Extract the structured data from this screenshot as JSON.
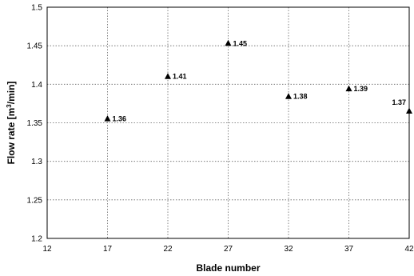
{
  "chart_data": {
    "type": "scatter",
    "title": "",
    "xlabel": "Blade number",
    "ylabel_pre": "Flow rate [m",
    "ylabel_sup": "3",
    "ylabel_post": "/min]",
    "xlim": [
      12,
      42
    ],
    "ylim": [
      1.2,
      1.5
    ],
    "xticks": [
      "12",
      "17",
      "22",
      "27",
      "32",
      "37",
      "42"
    ],
    "yticks": [
      "1.2",
      "1.25",
      "1.3",
      "1.35",
      "1.4",
      "1.45",
      "1.5"
    ],
    "grid": true,
    "marker": "triangle",
    "color": "#000000",
    "points": [
      {
        "x": 17,
        "y": 1.355,
        "label": "1.36"
      },
      {
        "x": 22,
        "y": 1.41,
        "label": "1.41"
      },
      {
        "x": 27,
        "y": 1.453,
        "label": "1.45"
      },
      {
        "x": 32,
        "y": 1.384,
        "label": "1.38"
      },
      {
        "x": 37,
        "y": 1.394,
        "label": "1.39"
      },
      {
        "x": 42,
        "y": 1.365,
        "label": "1.37"
      }
    ]
  }
}
